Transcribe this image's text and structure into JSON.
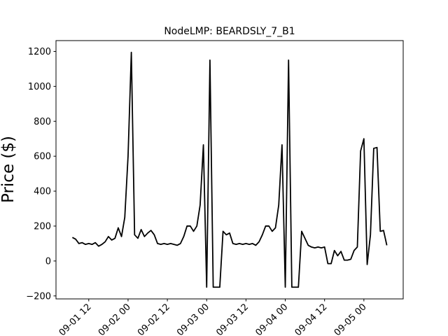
{
  "chart_data": {
    "type": "line",
    "title": "NodeLMP: BEARDSLY_7_B1",
    "y_label": "Price ($)",
    "x": [
      "09-01 07",
      "09-01 08",
      "09-01 09",
      "09-01 10",
      "09-01 11",
      "09-01 12",
      "09-01 13",
      "09-01 14",
      "09-01 15",
      "09-01 16",
      "09-01 17",
      "09-01 18",
      "09-01 19",
      "09-01 20",
      "09-01 21",
      "09-01 22",
      "09-01 23",
      "09-02 00",
      "09-02 01",
      "09-02 02",
      "09-02 03",
      "09-02 04",
      "09-02 05",
      "09-02 06",
      "09-02 07",
      "09-02 08",
      "09-02 09",
      "09-02 10",
      "09-02 11",
      "09-02 12",
      "09-02 13",
      "09-02 14",
      "09-02 15",
      "09-02 16",
      "09-02 17",
      "09-02 18",
      "09-02 19",
      "09-02 20",
      "09-02 21",
      "09-02 22",
      "09-02 23",
      "09-03 00",
      "09-03 01",
      "09-03 02",
      "09-03 03",
      "09-03 04",
      "09-03 05",
      "09-03 06",
      "09-03 07",
      "09-03 08",
      "09-03 09",
      "09-03 10",
      "09-03 11",
      "09-03 12",
      "09-03 13",
      "09-03 14",
      "09-03 15",
      "09-03 16",
      "09-03 17",
      "09-03 18",
      "09-03 19",
      "09-03 20",
      "09-03 21",
      "09-03 22",
      "09-03 23",
      "09-04 00",
      "09-04 01",
      "09-04 02",
      "09-04 03",
      "09-04 04",
      "09-04 05",
      "09-04 06",
      "09-04 07",
      "09-04 08",
      "09-04 09",
      "09-04 10",
      "09-04 11",
      "09-04 12",
      "09-04 13",
      "09-04 14",
      "09-04 15",
      "09-04 16",
      "09-04 17",
      "09-04 18",
      "09-04 19",
      "09-04 20",
      "09-04 21",
      "09-04 22",
      "09-04 23",
      "09-05 00",
      "09-05 01",
      "09-05 02",
      "09-05 03",
      "09-05 04",
      "09-05 05",
      "09-05 06",
      "09-05 07"
    ],
    "series": [
      {
        "name": "NodeLMP",
        "color": "#000000",
        "values": [
          135,
          125,
          100,
          105,
          95,
          100,
          95,
          105,
          85,
          95,
          110,
          140,
          120,
          130,
          190,
          140,
          250,
          600,
          1195,
          150,
          130,
          180,
          140,
          160,
          175,
          150,
          100,
          95,
          100,
          95,
          100,
          95,
          90,
          100,
          140,
          200,
          200,
          170,
          200,
          320,
          665,
          -150,
          1150,
          -150,
          -150,
          -150,
          170,
          150,
          160,
          100,
          95,
          100,
          95,
          100,
          95,
          100,
          90,
          110,
          150,
          200,
          200,
          170,
          190,
          320,
          665,
          -150,
          1150,
          -150,
          -150,
          -150,
          170,
          130,
          90,
          80,
          75,
          80,
          75,
          80,
          -15,
          -15,
          60,
          30,
          55,
          5,
          5,
          10,
          60,
          80,
          630,
          700,
          -20,
          150,
          645,
          650,
          170,
          175,
          90
        ]
      }
    ],
    "xlim": [
      "09-01 02",
      "09-05 12"
    ],
    "xticks": [
      "09-01 12",
      "09-02 00",
      "09-02 12",
      "09-03 00",
      "09-03 12",
      "09-04 00",
      "09-04 12",
      "09-05 00"
    ],
    "ylim": [
      -217,
      1262
    ],
    "yticks": [
      {
        "value": -200,
        "label": "−200"
      },
      0,
      200,
      400,
      600,
      800,
      1000,
      1200
    ]
  }
}
